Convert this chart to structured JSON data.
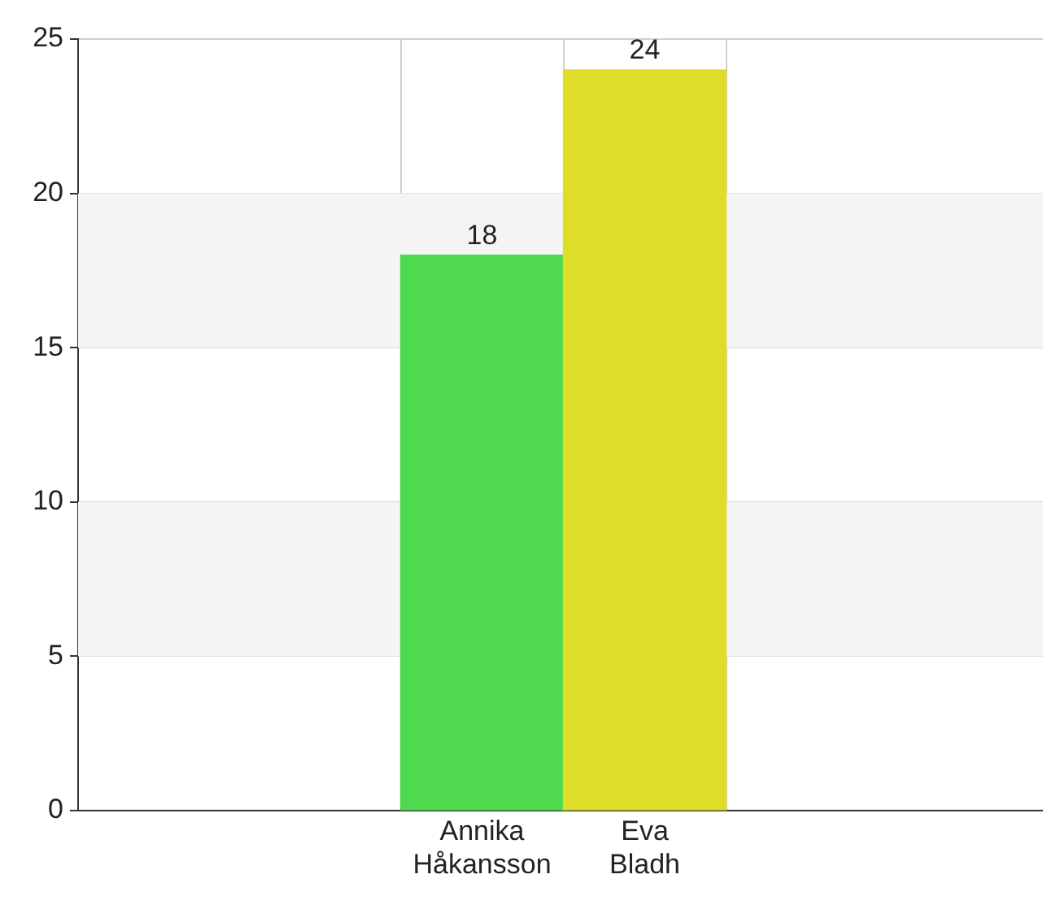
{
  "chart_data": {
    "type": "bar",
    "categories": [
      "Annika Håkansson",
      "Eva Bladh"
    ],
    "values": [
      18,
      24
    ],
    "colors": [
      "#4fd94f",
      "#dede2a"
    ],
    "ylim": [
      0,
      25
    ],
    "yticks": [
      0,
      5,
      10,
      15,
      20,
      25
    ],
    "grid": true,
    "data_labels": true
  }
}
